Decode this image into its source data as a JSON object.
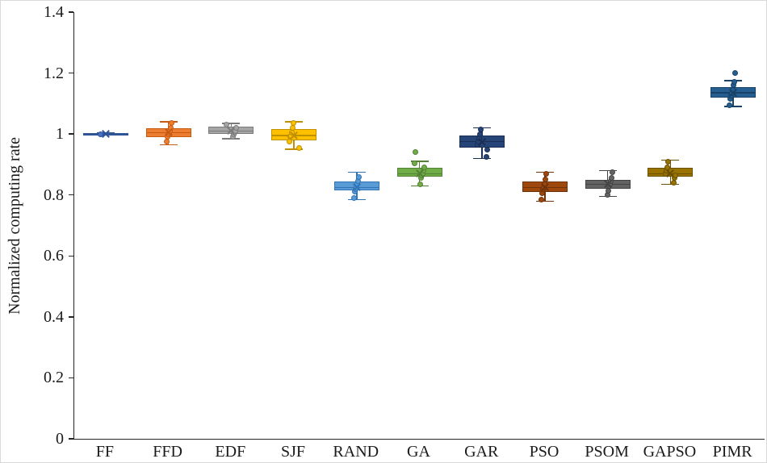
{
  "chart_data": {
    "type": "boxplot",
    "title": "",
    "xlabel": "",
    "ylabel": "Normalized computing rate",
    "ylim": [
      0,
      1.4
    ],
    "grid": false,
    "legend": "none",
    "axis_color": "#262626",
    "yticks": [
      {
        "value": 0,
        "label": "0"
      },
      {
        "value": 0.2,
        "label": "0.2"
      },
      {
        "value": 0.4,
        "label": "0.4"
      },
      {
        "value": 0.6,
        "label": "0.6"
      },
      {
        "value": 0.8,
        "label": "0.8"
      },
      {
        "value": 1,
        "label": "1"
      },
      {
        "value": 1.2,
        "label": "1.2"
      },
      {
        "value": 1.4,
        "label": "1.4"
      }
    ],
    "categories": [
      "FF",
      "FFD",
      "EDF",
      "SJF",
      "RAND",
      "GA",
      "GAR",
      "PSO",
      "PSOM",
      "GAPSO",
      "PIMR"
    ],
    "series": [
      {
        "name": "FF",
        "color": "#4472C4",
        "dark": "#2F5597",
        "low": 0.997,
        "q1": 0.999,
        "median": 1.0,
        "q3": 1.001,
        "high": 1.003,
        "mean": 1.0,
        "points": [
          1.0
        ],
        "outliers": []
      },
      {
        "name": "FFD",
        "color": "#ED7D31",
        "dark": "#C55A11",
        "low": 0.965,
        "q1": 0.99,
        "median": 1.005,
        "q3": 1.02,
        "high": 1.04,
        "mean": 1.005,
        "points": [
          0.975,
          0.99,
          1.0,
          1.005,
          1.01,
          1.02,
          1.035
        ],
        "outliers": []
      },
      {
        "name": "EDF",
        "color": "#A5A5A5",
        "dark": "#7B7B7B",
        "low": 0.985,
        "q1": 1.0,
        "median": 1.01,
        "q3": 1.025,
        "high": 1.035,
        "mean": 1.01,
        "points": [
          0.99,
          1.0,
          1.005,
          1.01,
          1.02,
          1.03
        ],
        "outliers": []
      },
      {
        "name": "SJF",
        "color": "#FFC000",
        "dark": "#BF9000",
        "low": 0.95,
        "q1": 0.98,
        "median": 0.995,
        "q3": 1.015,
        "high": 1.04,
        "mean": 0.995,
        "points": [
          0.955,
          0.975,
          0.99,
          0.995,
          1.005,
          1.02,
          1.035
        ],
        "outliers": []
      },
      {
        "name": "RAND",
        "color": "#5B9BD5",
        "dark": "#2E75B6",
        "low": 0.785,
        "q1": 0.815,
        "median": 0.825,
        "q3": 0.845,
        "high": 0.875,
        "mean": 0.825,
        "points": [
          0.79,
          0.81,
          0.82,
          0.825,
          0.835,
          0.845,
          0.86
        ],
        "outliers": []
      },
      {
        "name": "GA",
        "color": "#70AD47",
        "dark": "#548235",
        "low": 0.83,
        "q1": 0.86,
        "median": 0.87,
        "q3": 0.89,
        "high": 0.91,
        "mean": 0.87,
        "points": [
          0.835,
          0.855,
          0.865,
          0.87,
          0.88,
          0.89,
          0.905
        ],
        "outliers": [
          0.94
        ]
      },
      {
        "name": "GAR",
        "color": "#264478",
        "dark": "#1A2F53",
        "low": 0.92,
        "q1": 0.955,
        "median": 0.975,
        "q3": 0.995,
        "high": 1.02,
        "mean": 0.975,
        "points": [
          0.925,
          0.95,
          0.965,
          0.975,
          0.985,
          1.0,
          1.015
        ],
        "outliers": []
      },
      {
        "name": "PSO",
        "color": "#9E480E",
        "dark": "#6F3309",
        "low": 0.78,
        "q1": 0.81,
        "median": 0.825,
        "q3": 0.845,
        "high": 0.875,
        "mean": 0.825,
        "points": [
          0.785,
          0.805,
          0.82,
          0.825,
          0.835,
          0.85,
          0.87
        ],
        "outliers": []
      },
      {
        "name": "PSOM",
        "color": "#636363",
        "dark": "#444444",
        "low": 0.795,
        "q1": 0.82,
        "median": 0.835,
        "q3": 0.85,
        "high": 0.88,
        "mean": 0.835,
        "points": [
          0.8,
          0.815,
          0.83,
          0.835,
          0.845,
          0.855,
          0.875
        ],
        "outliers": []
      },
      {
        "name": "GAPSO",
        "color": "#997300",
        "dark": "#6B5000",
        "low": 0.835,
        "q1": 0.86,
        "median": 0.87,
        "q3": 0.89,
        "high": 0.915,
        "mean": 0.87,
        "points": [
          0.84,
          0.855,
          0.865,
          0.87,
          0.88,
          0.89,
          0.91
        ],
        "outliers": []
      },
      {
        "name": "PIMR",
        "color": "#255E91",
        "dark": "#1A4266",
        "low": 1.09,
        "q1": 1.12,
        "median": 1.135,
        "q3": 1.155,
        "high": 1.175,
        "mean": 1.135,
        "points": [
          1.095,
          1.115,
          1.125,
          1.135,
          1.145,
          1.16,
          1.17
        ],
        "outliers": [
          1.2
        ]
      }
    ]
  }
}
